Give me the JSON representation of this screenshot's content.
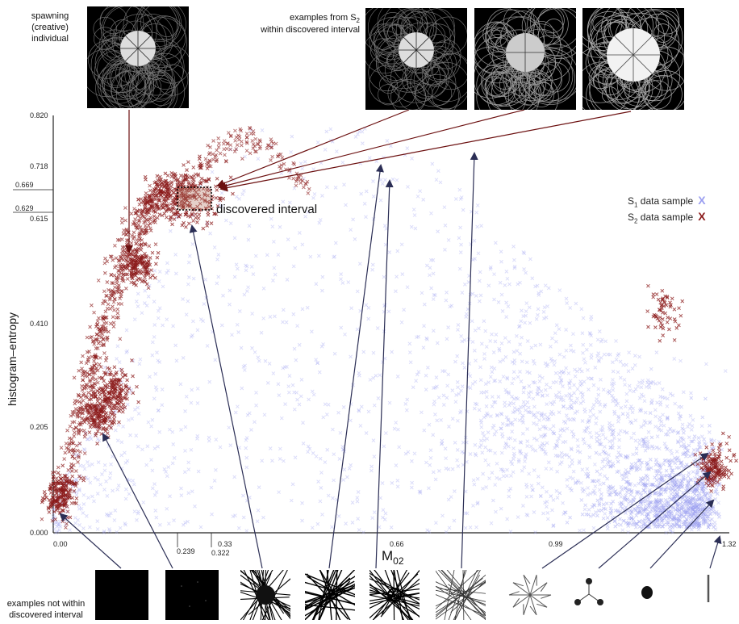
{
  "chart_data": {
    "type": "scatter",
    "xlabel": "M",
    "xlabel_sub": "02",
    "ylabel": "histogram–entropy",
    "xlim": [
      0.0,
      1.32
    ],
    "ylim": [
      0.0,
      0.82
    ],
    "x_ticks": [
      "0.00",
      "0.239",
      "0.33",
      "0.322",
      "0.66",
      "0.99",
      "1.32"
    ],
    "y_ticks": [
      "0.820",
      "0.718",
      "0.669",
      "0.629",
      "0.615",
      "0.410",
      "0.205",
      "0.000"
    ],
    "series": [
      {
        "name": "S1 data sample",
        "label_main": "S",
        "label_sub": "1",
        "label_rest": " data sample",
        "marker": "X",
        "color": "#9a9ef0",
        "description_points": [
          [
            0.05,
            0.02
          ],
          [
            0.2,
            0.35
          ],
          [
            0.35,
            0.5
          ],
          [
            0.5,
            0.45
          ],
          [
            0.65,
            0.55
          ],
          [
            0.8,
            0.5
          ],
          [
            0.95,
            0.4
          ],
          [
            1.1,
            0.3
          ],
          [
            1.2,
            0.2
          ],
          [
            1.28,
            0.1
          ],
          [
            1.3,
            0.03
          ],
          [
            0.4,
            0.65
          ],
          [
            0.6,
            0.7
          ]
        ]
      },
      {
        "name": "S2 data sample",
        "label_main": "S",
        "label_sub": "2",
        "label_rest": " data sample",
        "marker": "X",
        "color": "#8b1a1a",
        "clusters": [
          {
            "x": 0.015,
            "y": 0.08
          },
          {
            "x": 0.09,
            "y": 0.23
          },
          {
            "x": 0.12,
            "y": 0.28
          },
          {
            "x": 0.165,
            "y": 0.525
          },
          {
            "x": 0.26,
            "y": 0.66
          },
          {
            "x": 1.19,
            "y": 0.43
          },
          {
            "x": 1.29,
            "y": 0.13
          }
        ]
      }
    ],
    "discovered_interval": {
      "x": [
        0.239,
        0.322
      ],
      "y": [
        0.629,
        0.669
      ],
      "label": "discovered interval"
    },
    "annotations": {
      "spawning": [
        "spawning",
        "(creative)",
        "individual"
      ],
      "examples_in": [
        "examples from S",
        "2",
        "within discovered interval"
      ],
      "examples_out": [
        "examples not within",
        "discovered interval"
      ]
    },
    "legend_position": "right"
  }
}
